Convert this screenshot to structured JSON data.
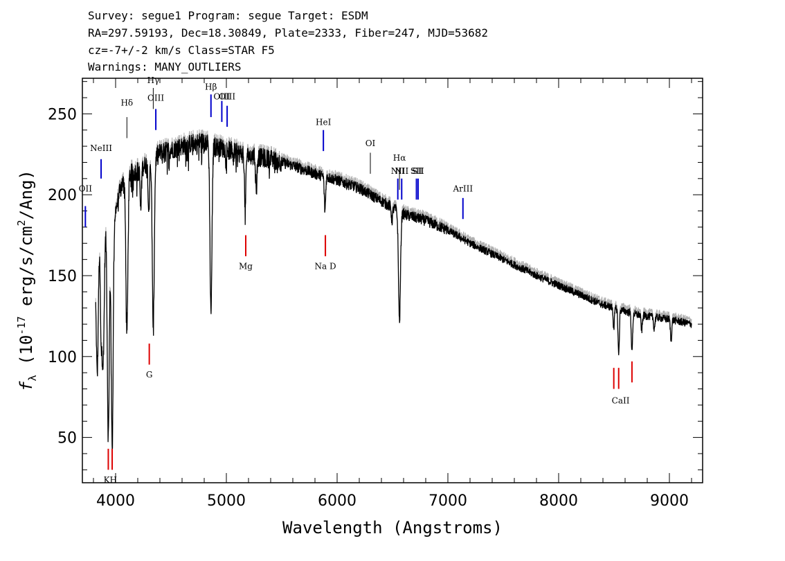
{
  "header": {
    "line1": "Survey: segue1 Program: segue Target: ESDM",
    "line2": "RA=297.59193, Dec=18.30849, Plate=2333, Fiber=247, MJD=53682",
    "line3": "cz=-7+/-2 km/s Class=STAR F5",
    "line4": "Warnings: MANY_OUTLIERS"
  },
  "chart_data": {
    "type": "line",
    "xlabel": "Wavelength (Angstroms)",
    "ylabel": "fλ (10^-17 erg/s/cm^2/Ang)",
    "xlim": [
      3700,
      9300
    ],
    "ylim": [
      22,
      272
    ],
    "x_ticks": [
      4000,
      5000,
      6000,
      7000,
      8000,
      9000
    ],
    "y_ticks": [
      50,
      100,
      150,
      200,
      250
    ],
    "series_color": "#000000",
    "error_color": "#b0b0b0",
    "emission_color": "#0000cc",
    "absorption_color": "#dd0000",
    "continuum": [
      {
        "x": 3820,
        "y": 150
      },
      {
        "x": 3860,
        "y": 185
      },
      {
        "x": 3900,
        "y": 180
      },
      {
        "x": 3950,
        "y": 185
      },
      {
        "x": 4000,
        "y": 190
      },
      {
        "x": 4050,
        "y": 205
      },
      {
        "x": 4100,
        "y": 212
      },
      {
        "x": 4200,
        "y": 215
      },
      {
        "x": 4300,
        "y": 220
      },
      {
        "x": 4400,
        "y": 226
      },
      {
        "x": 4500,
        "y": 228
      },
      {
        "x": 4600,
        "y": 230
      },
      {
        "x": 4700,
        "y": 232
      },
      {
        "x": 4800,
        "y": 233
      },
      {
        "x": 4900,
        "y": 230
      },
      {
        "x": 5000,
        "y": 228
      },
      {
        "x": 5200,
        "y": 224
      },
      {
        "x": 5400,
        "y": 222
      },
      {
        "x": 5600,
        "y": 218
      },
      {
        "x": 5800,
        "y": 213
      },
      {
        "x": 6000,
        "y": 209
      },
      {
        "x": 6200,
        "y": 204
      },
      {
        "x": 6400,
        "y": 196
      },
      {
        "x": 6600,
        "y": 188
      },
      {
        "x": 6800,
        "y": 184
      },
      {
        "x": 7000,
        "y": 178
      },
      {
        "x": 7200,
        "y": 170
      },
      {
        "x": 7500,
        "y": 160
      },
      {
        "x": 7800,
        "y": 150
      },
      {
        "x": 8100,
        "y": 141
      },
      {
        "x": 8400,
        "y": 132
      },
      {
        "x": 8700,
        "y": 126
      },
      {
        "x": 9000,
        "y": 123
      },
      {
        "x": 9200,
        "y": 120
      }
    ],
    "absorption_features": [
      {
        "x": 3835,
        "y": 90
      },
      {
        "x": 3870,
        "y": 115
      },
      {
        "x": 3889,
        "y": 105
      },
      {
        "x": 3934,
        "y": 50
      },
      {
        "x": 3969,
        "y": 45
      },
      {
        "x": 4102,
        "y": 115
      },
      {
        "x": 4227,
        "y": 190
      },
      {
        "x": 4300,
        "y": 190
      },
      {
        "x": 4340,
        "y": 118
      },
      {
        "x": 4861,
        "y": 128
      },
      {
        "x": 5170,
        "y": 190
      },
      {
        "x": 5270,
        "y": 205
      },
      {
        "x": 5890,
        "y": 190
      },
      {
        "x": 6495,
        "y": 184
      },
      {
        "x": 6563,
        "y": 122
      },
      {
        "x": 8498,
        "y": 118
      },
      {
        "x": 8542,
        "y": 101
      },
      {
        "x": 8662,
        "y": 103
      },
      {
        "x": 8750,
        "y": 116
      },
      {
        "x": 8863,
        "y": 117
      },
      {
        "x": 9015,
        "y": 110
      }
    ],
    "emission_lines": [
      {
        "label": "OII",
        "x": 3727,
        "y1": 180,
        "y2": 193,
        "label_y": 202
      },
      {
        "label": "NeIII",
        "x": 3869,
        "y1": 210,
        "y2": 222,
        "label_y": 227
      },
      {
        "label": "Hδ",
        "x": 4102,
        "y1": 235,
        "y2": 248,
        "label_y": 255
      },
      {
        "label": "Hγ",
        "x": 4340,
        "y1": 253,
        "y2": 266,
        "label_y": 269
      },
      {
        "label": "OIII",
        "x": 4363,
        "y1": 240,
        "y2": 253,
        "label_y": 258
      },
      {
        "label": "Hβ",
        "x": 4861,
        "y1": 248,
        "y2": 262,
        "label_y": 265
      },
      {
        "label": "OIII",
        "x": 4959,
        "y1": 245,
        "y2": 258,
        "label_y": 259
      },
      {
        "label": "OIII",
        "x": 5007,
        "y1": 242,
        "y2": 255,
        "label_y": 259
      },
      {
        "label": "HeI",
        "x": 5876,
        "y1": 227,
        "y2": 240,
        "label_y": 243
      },
      {
        "label": "OI",
        "x": 6300,
        "y1": 213,
        "y2": 226,
        "label_y": 230
      },
      {
        "label": "NII",
        "x": 6548,
        "y1": 197,
        "y2": 210,
        "label_y": 213
      },
      {
        "label": "Hα",
        "x": 6563,
        "y1": 203,
        "y2": 216,
        "label_y": 221
      },
      {
        "label": "NII",
        "x": 6583,
        "y1": 197,
        "y2": 210,
        "label_y": 213
      },
      {
        "label": "SII",
        "x": 6716,
        "y1": 197,
        "y2": 210,
        "label_y": 213
      },
      {
        "label": "SII",
        "x": 6731,
        "y1": 197,
        "y2": 210,
        "label_y": 213
      },
      {
        "label": "ArIII",
        "x": 7136,
        "y1": 185,
        "y2": 198,
        "label_y": 202
      }
    ],
    "absorption_lines": [
      {
        "label": "K",
        "x": 3934,
        "y1": 30,
        "y2": 43
      },
      {
        "label": "H",
        "x": 3969,
        "y1": 30,
        "y2": 43
      },
      {
        "label": "G",
        "x": 4304,
        "y1": 95,
        "y2": 108
      },
      {
        "label": "Mg",
        "x": 5175,
        "y1": 162,
        "y2": 175
      },
      {
        "label": "Na",
        "x": 5894,
        "y1": 162,
        "y2": 175
      },
      {
        "label": "D",
        "x": 5894,
        "y1": 162,
        "y2": 175
      },
      {
        "label": "CaII",
        "x": 8498,
        "y1": 80,
        "y2": 93
      },
      {
        "label": "",
        "x": 8542,
        "y1": 80,
        "y2": 93
      },
      {
        "label": "",
        "x": 8662,
        "y1": 84,
        "y2": 97
      }
    ],
    "absorption_labels": [
      {
        "text": "KH",
        "x": 3952,
        "y": 22
      },
      {
        "text": "G",
        "x": 4304,
        "y": 87
      },
      {
        "text": "Mg",
        "x": 5175,
        "y": 154
      },
      {
        "text": "Na  D",
        "x": 5894,
        "y": 154
      },
      {
        "text": "CaII",
        "x": 8560,
        "y": 71
      }
    ]
  }
}
